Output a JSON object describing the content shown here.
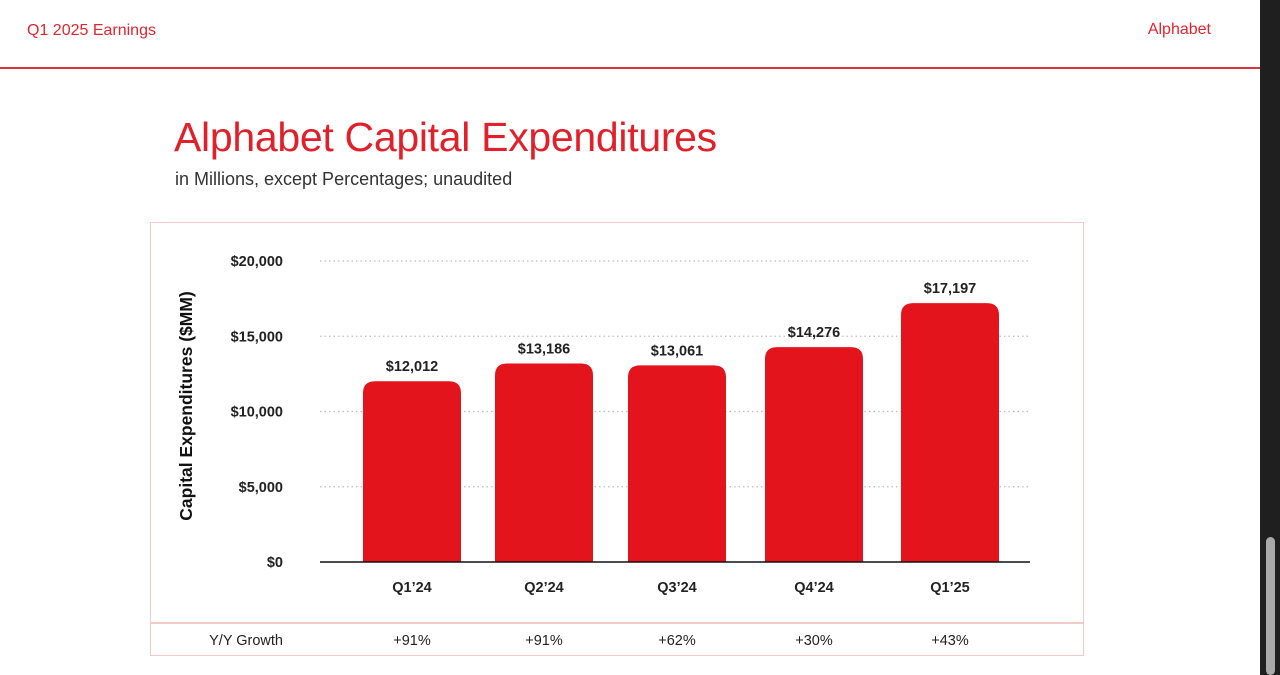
{
  "header": {
    "left_text": "Q1 2025 Earnings",
    "right_text": "Alphabet"
  },
  "title": "Alphabet Capital Expenditures",
  "subtitle": "in Millions, except Percentages; unaudited",
  "colors": {
    "accent": "#e0202a",
    "bar": "#e3141c",
    "rule": "#d8353c"
  },
  "chart_data": {
    "type": "bar",
    "categories": [
      "Q1’24",
      "Q2’24",
      "Q3’24",
      "Q4’24",
      "Q1’25"
    ],
    "values": [
      12012,
      13186,
      13061,
      14276,
      17197
    ],
    "value_labels": [
      "$12,012",
      "$13,186",
      "$13,061",
      "$14,276",
      "$17,197"
    ],
    "ylabel": "Capital Expenditures ($MM)",
    "ylim": [
      0,
      20000
    ],
    "yticks": [
      0,
      5000,
      10000,
      15000,
      20000
    ],
    "ytick_labels": [
      "$0",
      "$5,000",
      "$10,000",
      "$15,000",
      "$20,000"
    ],
    "grid": "dotted horizontal",
    "growth_row": {
      "label": "Y/Y Growth",
      "values": [
        "+91%",
        "+91%",
        "+62%",
        "+30%",
        "+43%"
      ]
    }
  }
}
